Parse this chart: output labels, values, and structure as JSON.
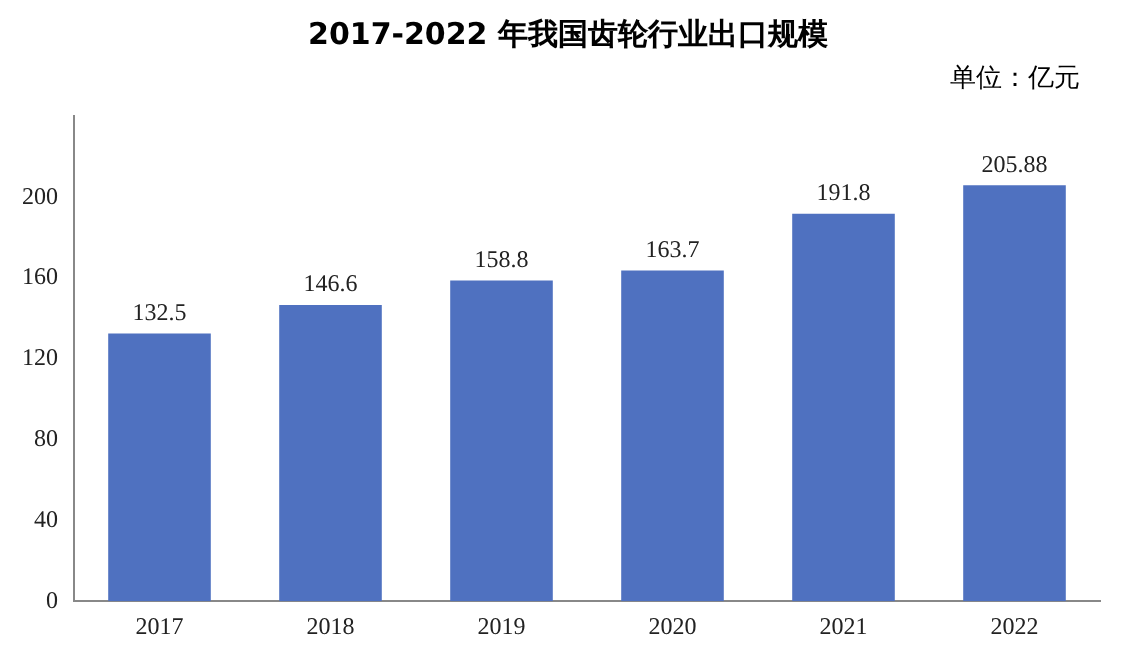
{
  "chart_data": {
    "type": "bar",
    "title": "2017-2022 年我国齿轮行业出口规模",
    "annotations": [
      "单位：亿元"
    ],
    "categories": [
      "2017",
      "2018",
      "2019",
      "2020",
      "2021",
      "2022"
    ],
    "values": [
      132.5,
      146.6,
      158.8,
      163.7,
      191.8,
      205.88
    ],
    "color": "#4f71c0",
    "ylim": [
      0,
      240
    ],
    "yticks": [
      0,
      40,
      80,
      120,
      160,
      200
    ],
    "grid": false,
    "data_labels": true
  }
}
